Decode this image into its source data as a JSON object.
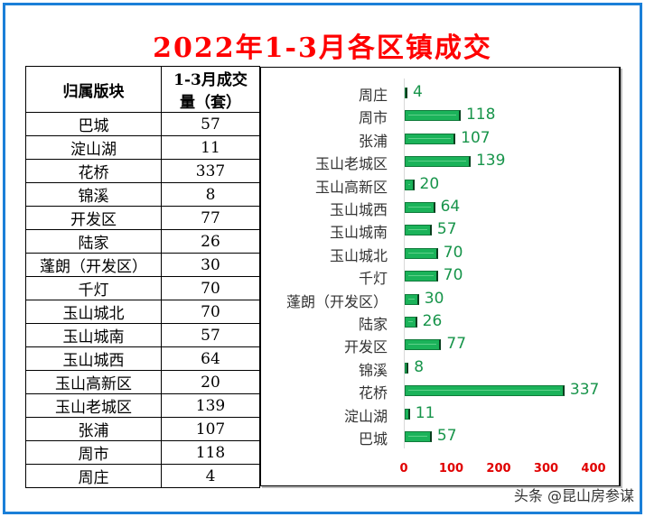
{
  "title": "2022年1-3月各区镇成交",
  "table": {
    "headers": [
      "归属版块",
      "1-3月成交量（套）"
    ],
    "header_col2_line1": "1-3月成交",
    "header_col2_line2": "量（套）",
    "rows": [
      {
        "area": "巴城",
        "count": "57"
      },
      {
        "area": "淀山湖",
        "count": "11"
      },
      {
        "area": "花桥",
        "count": "337"
      },
      {
        "area": "锦溪",
        "count": "8"
      },
      {
        "area": "开发区",
        "count": "77"
      },
      {
        "area": "陆家",
        "count": "26"
      },
      {
        "area": "蓬朗（开发区）",
        "count": "30"
      },
      {
        "area": "千灯",
        "count": "70"
      },
      {
        "area": "玉山城北",
        "count": "70"
      },
      {
        "area": "玉山城南",
        "count": "57"
      },
      {
        "area": "玉山城西",
        "count": "64"
      },
      {
        "area": "玉山高新区",
        "count": "20"
      },
      {
        "area": "玉山老城区",
        "count": "139"
      },
      {
        "area": "张浦",
        "count": "107"
      },
      {
        "area": "周市",
        "count": "118"
      },
      {
        "area": "周庄",
        "count": "4"
      }
    ]
  },
  "chart_data": {
    "type": "bar",
    "orientation": "horizontal",
    "title": "2022年1-3月各区镇成交",
    "categories": [
      "周庄",
      "周市",
      "张浦",
      "玉山老城区",
      "玉山高新区",
      "玉山城西",
      "玉山城南",
      "玉山城北",
      "千灯",
      "蓬朗（开发区）",
      "陆家",
      "开发区",
      "锦溪",
      "花桥",
      "淀山湖",
      "巴城"
    ],
    "values": [
      4,
      118,
      107,
      139,
      20,
      64,
      57,
      70,
      70,
      30,
      26,
      77,
      8,
      337,
      11,
      57
    ],
    "xlabel": "",
    "ylabel": "",
    "xlim": [
      0,
      400
    ],
    "xticks": [
      "0",
      "100",
      "200",
      "300",
      "400"
    ],
    "grid": false,
    "legend": "none",
    "data_labels": true,
    "colors": {
      "bar": "#1bb35a",
      "label": "#17944a",
      "tick": "#e00000"
    }
  },
  "colors": {
    "frame": "#1a7fd8",
    "title": "#ff0000"
  },
  "watermark": "头条 @昆山房参谋"
}
